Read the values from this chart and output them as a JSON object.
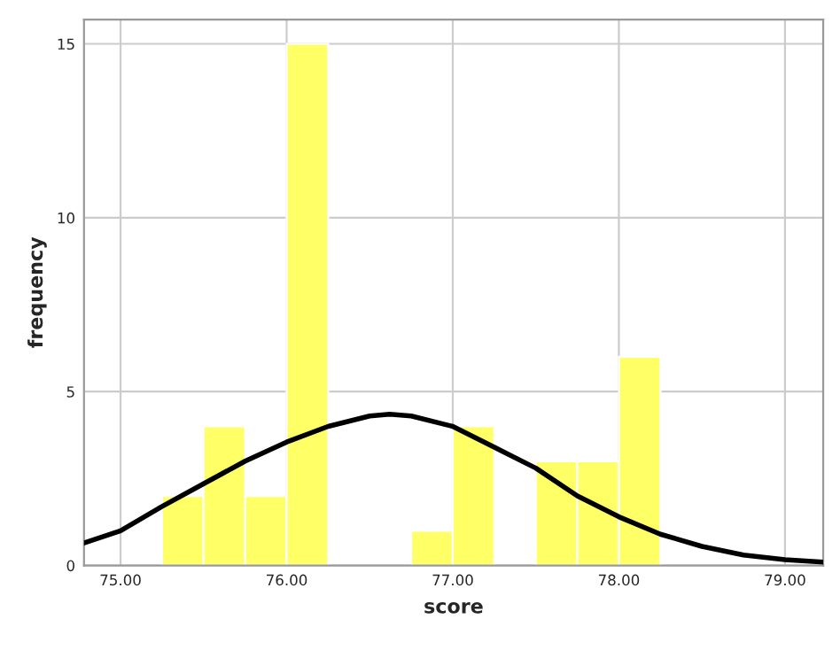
{
  "chart_data": {
    "type": "histogram",
    "xlabel": "score",
    "ylabel": "frequency",
    "bins": [
      75.25,
      75.5,
      75.75,
      76.0,
      76.25,
      76.5,
      76.75,
      77.0,
      77.25,
      77.5,
      77.75,
      78.0,
      78.25
    ],
    "values": [
      2,
      4,
      2,
      15,
      0,
      0,
      1,
      4,
      0,
      3,
      3,
      6
    ],
    "color": "#ffff66",
    "series": [
      {
        "type": "line",
        "color": "#000000",
        "x": [
          74.78,
          75.0,
          75.25,
          75.5,
          75.75,
          76.0,
          76.25,
          76.5,
          76.62,
          76.75,
          77.0,
          77.25,
          77.5,
          77.75,
          78.0,
          78.25,
          78.5,
          78.75,
          79.0,
          79.23
        ],
        "values": [
          0.65,
          1.0,
          1.7,
          2.35,
          3.0,
          3.55,
          4.0,
          4.3,
          4.35,
          4.3,
          4.0,
          3.4,
          2.8,
          2.0,
          1.4,
          0.9,
          0.55,
          0.3,
          0.17,
          0.1
        ]
      }
    ],
    "xlim": [
      74.78,
      79.23
    ],
    "ylim": [
      0,
      15.7
    ],
    "xticks": [
      {
        "value": 75,
        "label": "75.00"
      },
      {
        "value": 76,
        "label": "76.00"
      },
      {
        "value": 77,
        "label": "77.00"
      },
      {
        "value": 78,
        "label": "78.00"
      },
      {
        "value": 79,
        "label": "79.00"
      }
    ],
    "yticks": [
      0,
      5,
      10,
      15
    ],
    "grid": true
  }
}
